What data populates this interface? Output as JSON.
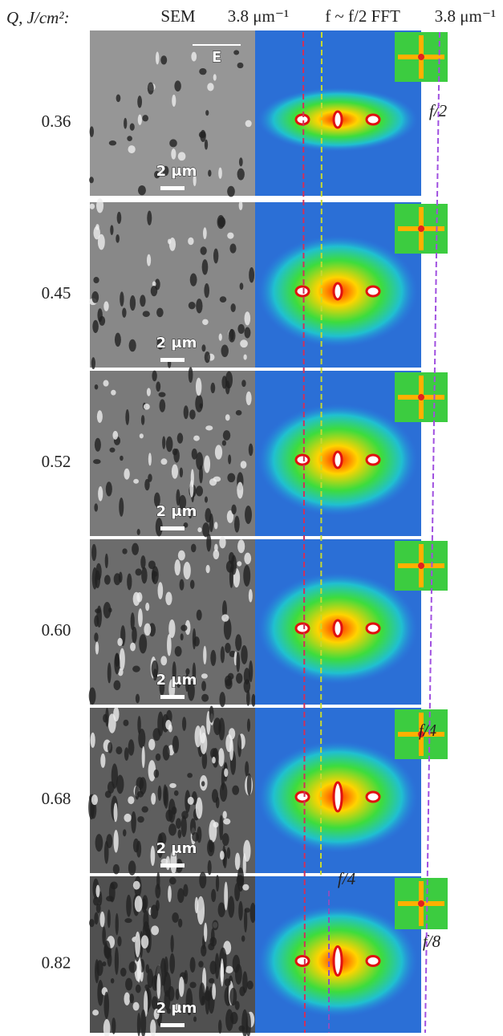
{
  "header": {
    "q_label": "Q, J/cm²:",
    "sem": "SEM",
    "scale_left": "3.8 μm⁻¹",
    "fft": "f ~ f/2 FFT",
    "scale_right": "3.8 μm⁻¹"
  },
  "rows": [
    {
      "fluence": "0.36",
      "scale_bar": "2 μm",
      "annotations": [
        "E",
        "f/2"
      ]
    },
    {
      "fluence": "0.45",
      "scale_bar": "2 μm",
      "annotations": []
    },
    {
      "fluence": "0.52",
      "scale_bar": "2 μm",
      "annotations": []
    },
    {
      "fluence": "0.60",
      "scale_bar": "2 μm",
      "annotations": []
    },
    {
      "fluence": "0.68",
      "scale_bar": "2 μm",
      "annotations": [
        "f/4"
      ]
    },
    {
      "fluence": "0.82",
      "scale_bar": "2 μm",
      "annotations": [
        "f/4",
        "f/8"
      ]
    }
  ]
}
